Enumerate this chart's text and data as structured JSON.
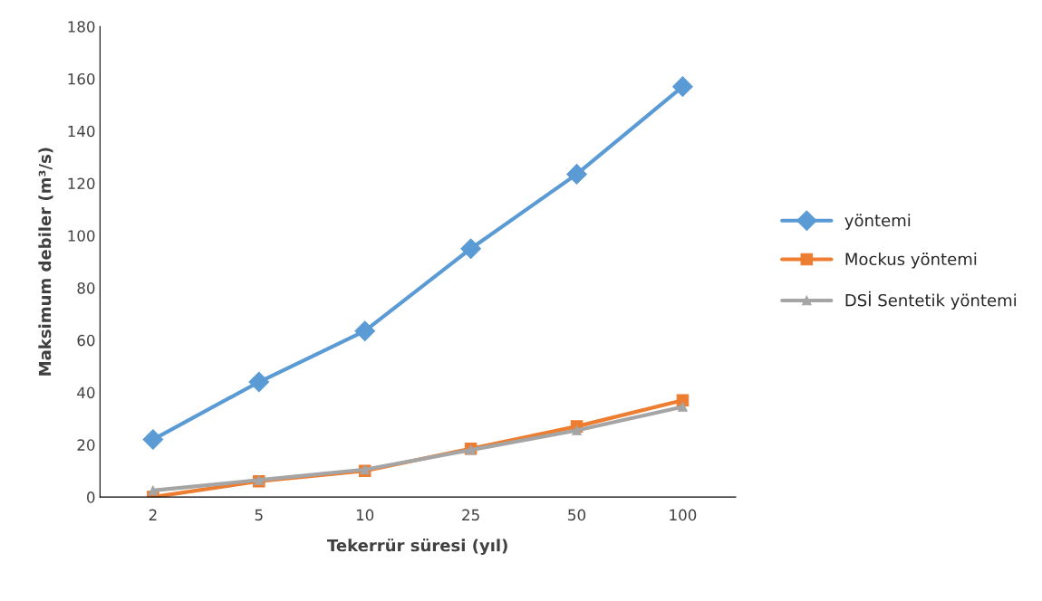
{
  "chart_data": {
    "type": "line",
    "xlabel": "Tekerrür süresi (yıl)",
    "ylabel": "Maksimum debiler (m³/s)",
    "categories": [
      "2",
      "5",
      "10",
      "25",
      "50",
      "100"
    ],
    "series": [
      {
        "name": "yöntemi",
        "color": "#5b9bd5",
        "marker": "diamond",
        "values": [
          22,
          44,
          63.5,
          95,
          123.5,
          157
        ]
      },
      {
        "name": "Mockus yöntemi",
        "color": "#ed7d31",
        "marker": "square",
        "values": [
          0,
          6,
          10,
          18.5,
          27,
          37
        ]
      },
      {
        "name": "DSİ Sentetik yöntemi",
        "color": "#a5a5a5",
        "marker": "triangle",
        "values": [
          2.5,
          6.5,
          10.5,
          18,
          25.5,
          34.5
        ]
      }
    ],
    "ylim": [
      0,
      180
    ],
    "yticks": [
      0,
      20,
      40,
      60,
      80,
      100,
      120,
      140,
      160,
      180
    ],
    "grid": false,
    "legend": "right",
    "line_style": "solid"
  }
}
